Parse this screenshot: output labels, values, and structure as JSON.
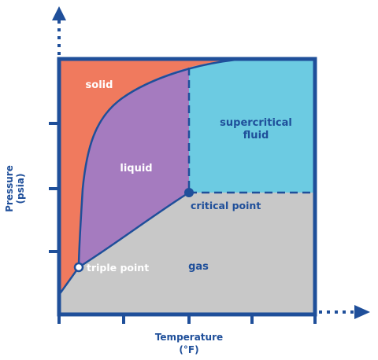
{
  "regions": {
    "solid": "solid",
    "liquid": "liquid",
    "supercritical_line1": "supercritical",
    "supercritical_line2": "fluid",
    "gas": "gas"
  },
  "points": {
    "critical": "critical point",
    "triple": "triple point"
  },
  "axes": {
    "y_line1": "Pressure",
    "y_line2": "(psia)",
    "x_line1": "Temperature",
    "x_line2": "(°F)"
  },
  "colors": {
    "solid": "#f07a5e",
    "liquid": "#a57bbf",
    "supercritical": "#6ccbe2",
    "gas": "#c8c8c8",
    "axis": "#1f4f9a",
    "boundary": "#1f4f9a",
    "region_label_light": "#ffffff",
    "region_label_dark": "#1f4f9a"
  },
  "icons": {
    "y_arrow": "arrow-up-icon",
    "x_arrow": "arrow-right-icon"
  }
}
